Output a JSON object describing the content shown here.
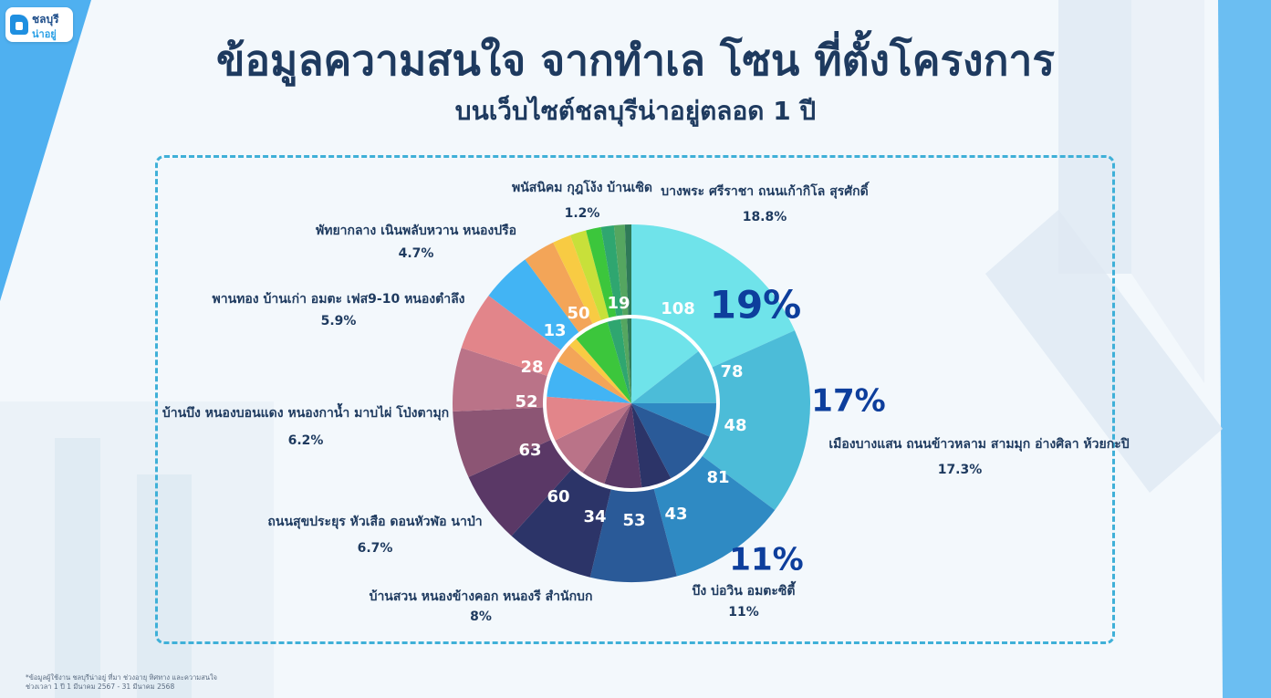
{
  "brand": {
    "line1": "ชลบุรี",
    "line2": "น่าอยู่"
  },
  "title": "ข้อมูลความสนใจ จากทำเล โซน ที่ตั้งโครงการ",
  "subtitle": "บนเว็บไซต์ชลบุรีน่าอยู่ตลอด 1 ปี",
  "footnote": {
    "line1": "*ข้อมูลผู้ใช้งาน ชลบุรีน่าอยู่ ที่มา ช่วงอายุ ทิศทาง และความสนใจ",
    "line2": "ช่วงเวลา 1 ปี 1 มีนาคม 2567 - 31 มีนาคม 2568"
  },
  "chart_data": {
    "type": "pie",
    "title": "",
    "outer_ring": [
      {
        "label": "บางพระ ศรีราชา ถนนเก้ากิโล สุรศักดิ์",
        "percent_text": "18.8%",
        "value": 18.8,
        "color": "#6fe3ea"
      },
      {
        "label": "เมืองบางแสน ถนนข้าวหลาม สามมุก อ่างศิลา ห้วยกะปิ",
        "percent_text": "17.3%",
        "value": 17.3,
        "color": "#4cbcd8"
      },
      {
        "label": "บึง บ่อวิน อมตะซิตี้",
        "percent_text": "11%",
        "value": 11.0,
        "color": "#2f8ac3"
      },
      {
        "label": "บ้านสวน หนองข้างคอก หนองรี สำนักบก",
        "percent_text": "8%",
        "value": 8.0,
        "color": "#2a5a98"
      },
      {
        "label": "",
        "percent_text": "",
        "value": 8.2,
        "color": "#2c3468"
      },
      {
        "label": "ถนนสุขประยุร หัวเสือ ดอนหัวฬ่อ นาป่า",
        "percent_text": "6.7%",
        "value": 6.7,
        "color": "#5a3866"
      },
      {
        "label": "บ้านบึง หนองบอนแดง หนองกาน้ำ มาบไผ่ โป่งตามุก",
        "percent_text": "6.2%",
        "value": 6.2,
        "color": "#8c5574"
      },
      {
        "label": "พานทอง บ้านเก่า อมตะ เฟส9-10 หนองตำลึง",
        "percent_text": "5.9%",
        "value": 5.9,
        "color": "#ba7388"
      },
      {
        "label": "",
        "percent_text": "",
        "value": 5.4,
        "color": "#e2858a"
      },
      {
        "label": "พัทยากลาง เนินพลับหวาน หนองปรือ",
        "percent_text": "4.7%",
        "value": 4.7,
        "color": "#42b4f4"
      },
      {
        "label": "",
        "percent_text": "",
        "value": 3.0,
        "color": "#f3a558"
      },
      {
        "label": "",
        "percent_text": "",
        "value": 1.7,
        "color": "#f8cb43"
      },
      {
        "label": "",
        "percent_text": "",
        "value": 1.5,
        "color": "#c8e03a"
      },
      {
        "label": "",
        "percent_text": "",
        "value": 1.4,
        "color": "#3cc63c"
      },
      {
        "label": "พนัสนิคม กุฎโง้ง บ้านเซิด",
        "percent_text": "1.2%",
        "value": 1.2,
        "color": "#2fa670"
      },
      {
        "label": "",
        "percent_text": "",
        "value": 1.0,
        "color": "#55a660"
      },
      {
        "label": "",
        "percent_text": "",
        "value": 0.6,
        "color": "#2f7a58"
      }
    ],
    "inner_ring": [
      {
        "value": 108,
        "color": "#6fe3ea"
      },
      {
        "value": 78,
        "color": "#4cbcd8"
      },
      {
        "value": 48,
        "color": "#2f8ac3"
      },
      {
        "value": 81,
        "color": "#2a5a98"
      },
      {
        "value": 43,
        "color": "#2c3468"
      },
      {
        "value": 53,
        "color": "#5a3866"
      },
      {
        "value": 34,
        "color": "#8c5574"
      },
      {
        "value": 60,
        "color": "#ba7388"
      },
      {
        "value": 63,
        "color": "#e2858a"
      },
      {
        "value": 52,
        "color": "#42b4f4"
      },
      {
        "value": 28,
        "color": "#f3a558"
      },
      {
        "value": 13,
        "color": "#f8cb43"
      },
      {
        "value": 50,
        "color": "#3cc63c"
      },
      {
        "value": 19,
        "color": "#2fa670"
      },
      {
        "value": 9,
        "color": "#55a660"
      },
      {
        "value": 6,
        "color": "#2f7a58"
      }
    ],
    "number_labels": [
      "108",
      "78",
      "48",
      "81",
      "43",
      "53",
      "34",
      "60",
      "63",
      "52",
      "28",
      "13",
      "50",
      "19"
    ],
    "big_percents": [
      "19%",
      "17%",
      "11%"
    ]
  }
}
